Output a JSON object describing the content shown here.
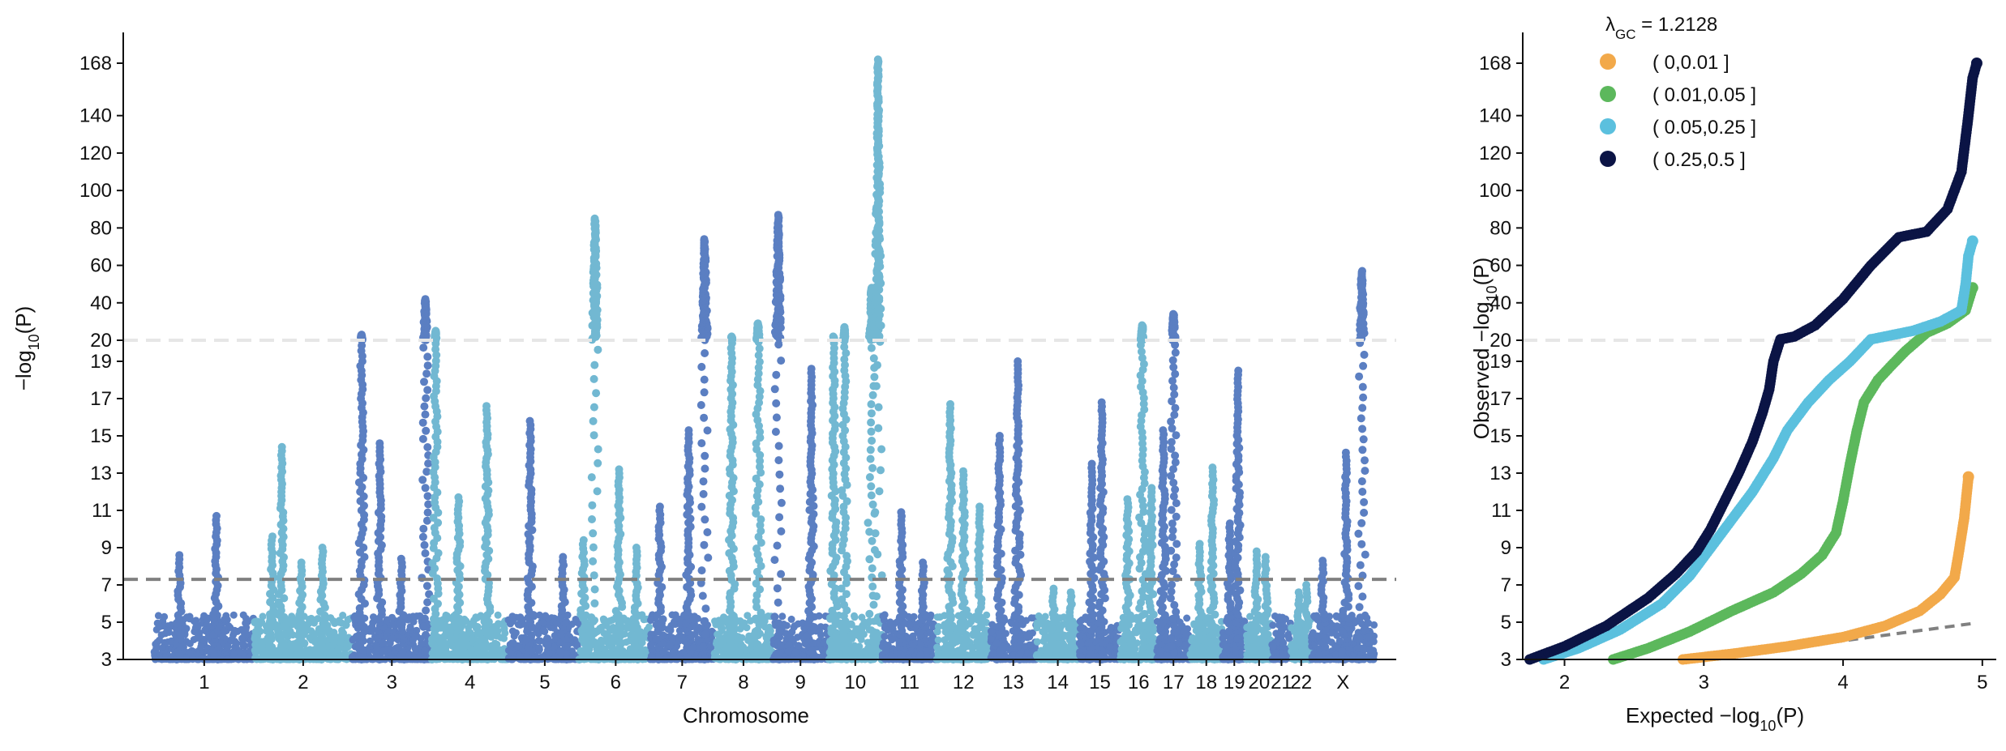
{
  "chart_data": [
    {
      "type": "scatter",
      "subtype": "manhattan",
      "xlabel": "Chromosome",
      "ylabel": "−log10(P)",
      "y_scale": "piecewise: linear 3–20 on lower segment, compressed linear 20–180 on upper segment",
      "ylim": [
        3,
        180
      ],
      "y_ticks": [
        "3",
        "5",
        "7",
        "9",
        "11",
        "13",
        "15",
        "17",
        "19",
        "20",
        "40",
        "60",
        "80",
        "100",
        "120",
        "140",
        "168"
      ],
      "categories": [
        "1",
        "2",
        "3",
        "4",
        "5",
        "6",
        "7",
        "8",
        "9",
        "10",
        "11",
        "12",
        "13",
        "14",
        "15",
        "16",
        "17",
        "18",
        "19",
        "20",
        "21",
        "22",
        "X"
      ],
      "colors": [
        "#5b7fc2",
        "#72b8d2"
      ],
      "grid": false,
      "reference_lines": [
        {
          "y": 7.3,
          "style": "dashed",
          "color": "#808080"
        },
        {
          "y": 20,
          "style": "dashed",
          "color": "#e6e6e6"
        }
      ],
      "peaks": [
        {
          "chr": "1",
          "pos": 0.62,
          "y": 10.7
        },
        {
          "chr": "1",
          "pos": 0.25,
          "y": 8.6
        },
        {
          "chr": "2",
          "pos": 0.18,
          "y": 9.6
        },
        {
          "chr": "2",
          "pos": 0.28,
          "y": 14.4
        },
        {
          "chr": "2",
          "pos": 0.48,
          "y": 8.2
        },
        {
          "chr": "2",
          "pos": 0.7,
          "y": 9.0
        },
        {
          "chr": "3",
          "pos": 0.12,
          "y": 23
        },
        {
          "chr": "3",
          "pos": 0.35,
          "y": 14.6
        },
        {
          "chr": "3",
          "pos": 0.62,
          "y": 8.4
        },
        {
          "chr": "3",
          "pos": 0.92,
          "y": 42
        },
        {
          "chr": "4",
          "pos": 0.05,
          "y": 25
        },
        {
          "chr": "4",
          "pos": 0.35,
          "y": 11.7
        },
        {
          "chr": "4",
          "pos": 0.72,
          "y": 16.6
        },
        {
          "chr": "5",
          "pos": 0.3,
          "y": 15.8
        },
        {
          "chr": "5",
          "pos": 0.75,
          "y": 8.5
        },
        {
          "chr": "6",
          "pos": 0.03,
          "y": 9.4
        },
        {
          "chr": "6",
          "pos": 0.2,
          "y": 85
        },
        {
          "chr": "6",
          "pos": 0.55,
          "y": 13.2
        },
        {
          "chr": "6",
          "pos": 0.8,
          "y": 9.0
        },
        {
          "chr": "7",
          "pos": 0.15,
          "y": 11.2
        },
        {
          "chr": "7",
          "pos": 0.6,
          "y": 15.3
        },
        {
          "chr": "7",
          "pos": 0.85,
          "y": 74
        },
        {
          "chr": "8",
          "pos": 0.3,
          "y": 22
        },
        {
          "chr": "8",
          "pos": 0.75,
          "y": 29
        },
        {
          "chr": "9",
          "pos": 0.1,
          "y": 87
        },
        {
          "chr": "9",
          "pos": 0.7,
          "y": 18.6
        },
        {
          "chr": "10",
          "pos": 0.1,
          "y": 22
        },
        {
          "chr": "10",
          "pos": 0.3,
          "y": 27
        },
        {
          "chr": "10",
          "pos": 0.8,
          "y": 48
        },
        {
          "chr": "10",
          "pos": 0.92,
          "y": 170
        },
        {
          "chr": "11",
          "pos": 0.35,
          "y": 10.9
        },
        {
          "chr": "11",
          "pos": 0.75,
          "y": 8.2
        },
        {
          "chr": "12",
          "pos": 0.25,
          "y": 16.7
        },
        {
          "chr": "12",
          "pos": 0.5,
          "y": 13.1
        },
        {
          "chr": "12",
          "pos": 0.8,
          "y": 11.2
        },
        {
          "chr": "13",
          "pos": 0.2,
          "y": 15.0
        },
        {
          "chr": "13",
          "pos": 0.6,
          "y": 19.0
        },
        {
          "chr": "14",
          "pos": 0.4,
          "y": 6.8
        },
        {
          "chr": "14",
          "pos": 0.8,
          "y": 6.6
        },
        {
          "chr": "15",
          "pos": 0.3,
          "y": 13.5
        },
        {
          "chr": "15",
          "pos": 0.55,
          "y": 16.8
        },
        {
          "chr": "16",
          "pos": 0.2,
          "y": 11.6
        },
        {
          "chr": "16",
          "pos": 0.6,
          "y": 28
        },
        {
          "chr": "16",
          "pos": 0.85,
          "y": 12.2
        },
        {
          "chr": "17",
          "pos": 0.2,
          "y": 15.3
        },
        {
          "chr": "17",
          "pos": 0.5,
          "y": 34
        },
        {
          "chr": "18",
          "pos": 0.3,
          "y": 9.2
        },
        {
          "chr": "18",
          "pos": 0.7,
          "y": 13.3
        },
        {
          "chr": "19",
          "pos": 0.3,
          "y": 10.3
        },
        {
          "chr": "19",
          "pos": 0.65,
          "y": 18.5
        },
        {
          "chr": "20",
          "pos": 0.4,
          "y": 8.8
        },
        {
          "chr": "20",
          "pos": 0.75,
          "y": 8.5
        },
        {
          "chr": "21",
          "pos": 0.5,
          "y": 5.2
        },
        {
          "chr": "22",
          "pos": 0.4,
          "y": 6.6
        },
        {
          "chr": "22",
          "pos": 0.75,
          "y": 7.0
        },
        {
          "chr": "X",
          "pos": 0.18,
          "y": 8.3
        },
        {
          "chr": "X",
          "pos": 0.55,
          "y": 14.1
        },
        {
          "chr": "X",
          "pos": 0.8,
          "y": 57
        }
      ]
    },
    {
      "type": "scatter",
      "subtype": "qq",
      "xlabel": "Expected −log10(P)",
      "ylabel": "Observed −log10(P)",
      "x_ticks": [
        "2",
        "3",
        "4",
        "5"
      ],
      "xlim": [
        1.7,
        5.1
      ],
      "ylim": [
        3,
        180
      ],
      "y_ticks": [
        "3",
        "5",
        "7",
        "9",
        "11",
        "13",
        "15",
        "17",
        "19",
        "20",
        "40",
        "60",
        "80",
        "100",
        "120",
        "140",
        "168"
      ],
      "legend_title": "λGC = 1.2128",
      "legend_placement": "top-left",
      "reference_lines": [
        {
          "type": "diagonal",
          "style": "dashed",
          "color": "#808080"
        },
        {
          "y": 20,
          "style": "dashed",
          "color": "#e6e6e6"
        }
      ],
      "series": [
        {
          "name": "( 0,0.01 ]",
          "color": "#f2a94a",
          "points": [
            [
              2.85,
              3.0
            ],
            [
              3.2,
              3.3
            ],
            [
              3.6,
              3.7
            ],
            [
              4.0,
              4.2
            ],
            [
              4.3,
              4.8
            ],
            [
              4.55,
              5.6
            ],
            [
              4.7,
              6.5
            ],
            [
              4.8,
              7.4
            ],
            [
              4.83,
              8.7
            ],
            [
              4.87,
              10.6
            ],
            [
              4.9,
              12.8
            ]
          ]
        },
        {
          "name": "( 0.01,0.05 ]",
          "color": "#5cb85c",
          "points": [
            [
              2.35,
              3.0
            ],
            [
              2.6,
              3.6
            ],
            [
              2.9,
              4.5
            ],
            [
              3.2,
              5.6
            ],
            [
              3.5,
              6.6
            ],
            [
              3.7,
              7.6
            ],
            [
              3.85,
              8.6
            ],
            [
              3.95,
              9.8
            ],
            [
              4.0,
              11.5
            ],
            [
              4.05,
              13.5
            ],
            [
              4.1,
              15.3
            ],
            [
              4.15,
              16.8
            ],
            [
              4.25,
              18.0
            ],
            [
              4.35,
              18.8
            ],
            [
              4.45,
              19.5
            ],
            [
              4.6,
              24
            ],
            [
              4.75,
              29
            ],
            [
              4.88,
              36
            ],
            [
              4.93,
              48
            ]
          ]
        },
        {
          "name": "( 0.05,0.25 ]",
          "color": "#5bc0de",
          "points": [
            [
              1.85,
              3.0
            ],
            [
              2.1,
              3.6
            ],
            [
              2.4,
              4.6
            ],
            [
              2.7,
              6.0
            ],
            [
              2.9,
              7.5
            ],
            [
              3.05,
              9.0
            ],
            [
              3.2,
              10.5
            ],
            [
              3.35,
              12.0
            ],
            [
              3.5,
              13.8
            ],
            [
              3.6,
              15.3
            ],
            [
              3.75,
              16.8
            ],
            [
              3.9,
              18.0
            ],
            [
              4.05,
              19.0
            ],
            [
              4.2,
              20.5
            ],
            [
              4.5,
              25
            ],
            [
              4.7,
              30
            ],
            [
              4.85,
              36
            ],
            [
              4.88,
              50
            ],
            [
              4.9,
              65
            ],
            [
              4.93,
              73
            ]
          ]
        },
        {
          "name": "( 0.25,0.5 ]",
          "color": "#0b1445",
          "points": [
            [
              1.75,
              3.0
            ],
            [
              2.0,
              3.7
            ],
            [
              2.3,
              4.8
            ],
            [
              2.6,
              6.3
            ],
            [
              2.8,
              7.6
            ],
            [
              2.95,
              8.8
            ],
            [
              3.05,
              10.0
            ],
            [
              3.15,
              11.5
            ],
            [
              3.25,
              13.0
            ],
            [
              3.35,
              14.7
            ],
            [
              3.42,
              16.2
            ],
            [
              3.47,
              17.5
            ],
            [
              3.5,
              19.0
            ],
            [
              3.55,
              20.5
            ],
            [
              3.65,
              22
            ],
            [
              3.8,
              28
            ],
            [
              4.0,
              42
            ],
            [
              4.2,
              60
            ],
            [
              4.4,
              75
            ],
            [
              4.6,
              78
            ],
            [
              4.75,
              90
            ],
            [
              4.85,
              110
            ],
            [
              4.9,
              140
            ],
            [
              4.93,
              160
            ],
            [
              4.96,
              168
            ]
          ]
        }
      ]
    }
  ]
}
